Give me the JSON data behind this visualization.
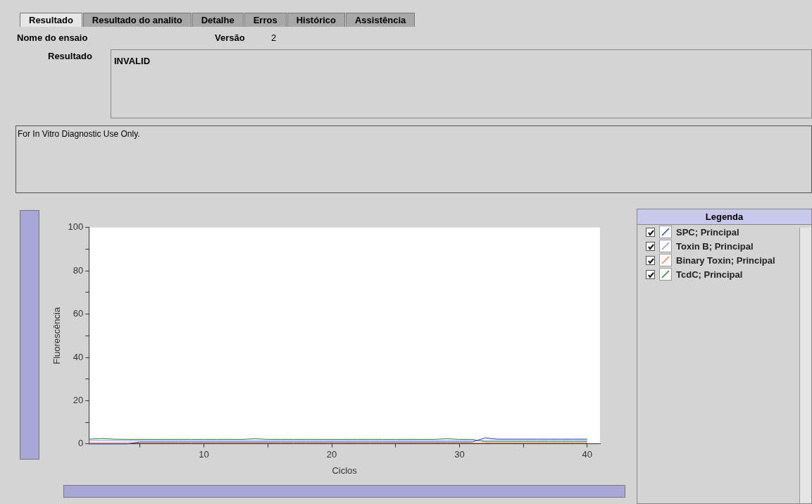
{
  "chart_data": {
    "type": "line",
    "xlabel": "Ciclos",
    "ylabel": "Fluorescência",
    "legend_title": "Legenda",
    "legend": "right",
    "grid": false,
    "marker": "none",
    "line_style": "solid",
    "annotations": [
      "Resultado",
      "Resultado do analito",
      "Detalhe",
      "Erros",
      "Histórico",
      "Assistência",
      "Nome do ensaio",
      "Versão",
      "2",
      "Resultado",
      "INVALID",
      "For In Vitro Diagnostic Use Only."
    ],
    "xlim": [
      1,
      41
    ],
    "xticks": [
      {
        "value": 5,
        "label": null
      },
      10,
      {
        "value": 15,
        "label": null
      },
      20,
      {
        "value": 25,
        "label": null
      },
      30,
      {
        "value": 35,
        "label": null
      },
      40
    ],
    "ylim": [
      0,
      100
    ],
    "yticks": [
      0,
      {
        "value": 10,
        "label": null
      },
      20,
      {
        "value": 30,
        "label": null
      },
      40,
      {
        "value": 50,
        "label": null
      },
      60,
      {
        "value": 70,
        "label": null
      },
      80,
      {
        "value": 90,
        "label": null
      },
      100
    ],
    "x": [
      1,
      2,
      3,
      4,
      5,
      6,
      7,
      8,
      9,
      10,
      11,
      12,
      13,
      14,
      15,
      16,
      17,
      18,
      19,
      20,
      21,
      22,
      23,
      24,
      25,
      26,
      27,
      28,
      29,
      30,
      31,
      32,
      33,
      34,
      35,
      36,
      37,
      38,
      39,
      40
    ],
    "series": [
      {
        "name": "SPC; Principal",
        "color": "#2040c0",
        "values": [
          0,
          0,
          0,
          0,
          0.9,
          0.9,
          0.9,
          0.9,
          0.9,
          0.9,
          0.9,
          0.9,
          0.9,
          0.9,
          0.9,
          0.9,
          0.9,
          0.9,
          0.9,
          0.9,
          0.9,
          0.9,
          0.9,
          0.9,
          0.9,
          0.9,
          0.9,
          0.9,
          0.9,
          0.9,
          0.9,
          2.8,
          2.2,
          2.2,
          2.2,
          2.2,
          2.2,
          2.2,
          2.2,
          2.2
        ]
      },
      {
        "name": "Toxin B; Principal",
        "color": "#9090e0",
        "values": [
          1.6,
          1.6,
          1.6,
          1.5,
          1.5,
          1.5,
          1.5,
          1.5,
          1.5,
          1.5,
          1.5,
          1.5,
          1.5,
          1.5,
          1.5,
          1.5,
          1.5,
          1.5,
          1.5,
          1.5,
          1.5,
          1.5,
          1.5,
          1.5,
          1.5,
          1.5,
          1.5,
          1.5,
          1.5,
          1.5,
          1.5,
          1.6,
          1.6,
          1.6,
          1.6,
          1.6,
          1.6,
          1.6,
          1.6,
          1.6
        ]
      },
      {
        "name": "Binary Toxin; Principal",
        "color": "#f08040",
        "values": [
          0.6,
          0.6,
          0.6,
          0.6,
          0.4,
          0.4,
          0.4,
          0.4,
          0.4,
          0.4,
          0.4,
          0.4,
          0.4,
          0.4,
          0.4,
          0.4,
          0.4,
          0.4,
          0.4,
          0.4,
          0.4,
          0.4,
          0.4,
          0.4,
          0.4,
          0.4,
          0.4,
          0.4,
          0.4,
          0.4,
          0.4,
          0.4,
          0.4,
          0.4,
          0.4,
          0.4,
          0.4,
          0.4,
          0.4,
          0.4
        ]
      },
      {
        "name": "TcdC; Principal",
        "color": "#208030",
        "values": [
          2.2,
          2.5,
          2.2,
          2.1,
          2.1,
          2.1,
          2.1,
          2.1,
          2.1,
          2.1,
          2.1,
          2.1,
          2.1,
          2.4,
          2.1,
          2.1,
          2.1,
          2.1,
          2.1,
          2.1,
          2.1,
          2.1,
          2.1,
          2.1,
          2.1,
          2.1,
          2.1,
          2.1,
          2.4,
          2.1,
          2.1,
          1,
          1,
          1,
          1,
          1,
          1,
          1,
          1,
          1
        ]
      }
    ]
  }
}
